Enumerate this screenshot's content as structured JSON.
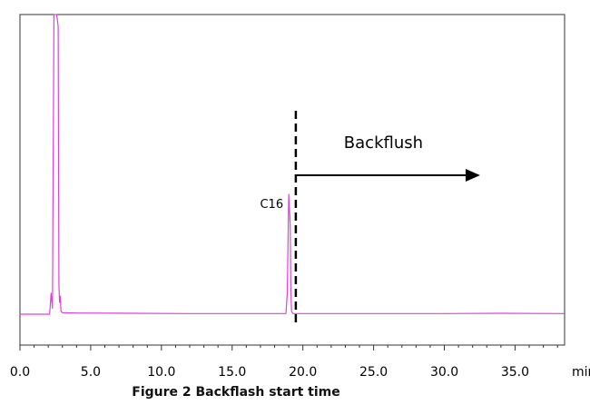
{
  "caption": "Figure 2 Backflash start time",
  "chart_data": {
    "type": "line",
    "x_unit": "min",
    "xlim": [
      0.0,
      38.5
    ],
    "ylim": [
      0,
      100
    ],
    "x_ticks": [
      0.0,
      5.0,
      10.0,
      15.0,
      20.0,
      25.0,
      30.0,
      35.0
    ],
    "x_tick_labels": [
      "0.0",
      "5.0",
      "10.0",
      "15.0",
      "20.0",
      "25.0",
      "30.0",
      "35.0"
    ],
    "minor_tick_step": 1.0,
    "grid": false,
    "line_color": "#e040e0",
    "series": [
      {
        "x": [
          0.0,
          2.1,
          2.2,
          2.3,
          2.4,
          2.5,
          2.6,
          2.7,
          2.75,
          2.8,
          2.85,
          2.9,
          3.0,
          4.0,
          8.0,
          12.0,
          16.0,
          18.8,
          18.9,
          19.0,
          19.1,
          19.15,
          19.2,
          19.3,
          22.0,
          26.0,
          30.0,
          34.0,
          38.5
        ],
        "y": [
          0.0,
          0.0,
          7.0,
          2.0,
          100.0,
          100.0,
          100.0,
          96.0,
          10.0,
          4.0,
          6.0,
          1.0,
          0.5,
          0.4,
          0.3,
          0.2,
          0.2,
          0.2,
          7.0,
          40.0,
          30.0,
          8.0,
          1.0,
          0.2,
          0.2,
          0.2,
          0.2,
          0.3,
          0.2
        ]
      }
    ],
    "annotations": {
      "peak_label": {
        "text": "C16",
        "x": 19.0
      },
      "backflush_time": 19.5,
      "backflush_label": "Backflush",
      "arrow_end": 32.4
    }
  }
}
